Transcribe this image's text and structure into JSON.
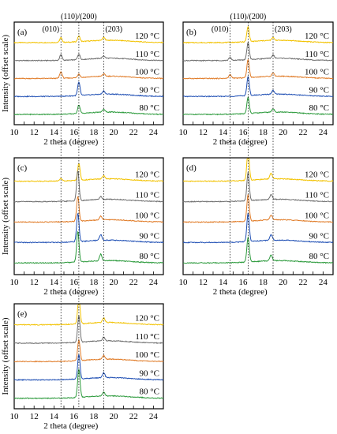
{
  "chart_data": [
    {
      "panel": "(a)",
      "type": "line",
      "xlabel": "2 theta (degree)",
      "ylabel": "Intensity (offset scale)",
      "xlim": [
        10,
        25
      ],
      "xticks": [
        10,
        11,
        12,
        13,
        14,
        15,
        16,
        17,
        18,
        19,
        20,
        21,
        22,
        23,
        24
      ],
      "peak_labels": [
        "(010)",
        "(110)/(200)",
        "(203)"
      ],
      "series": [
        {
          "name": "120 °C",
          "color": "#f2c200",
          "peaks": [
            {
              "x": 14.7,
              "h": 0.5
            },
            {
              "x": 16.5,
              "h": 0.6
            },
            {
              "x": 19.0,
              "h": 0.3
            }
          ]
        },
        {
          "name": "110 °C",
          "color": "#6e6e6e",
          "peaks": [
            {
              "x": 14.7,
              "h": 0.6
            },
            {
              "x": 16.5,
              "h": 0.6
            },
            {
              "x": 19.0,
              "h": 0.25
            }
          ]
        },
        {
          "name": "100 °C",
          "color": "#e07b27",
          "peaks": [
            {
              "x": 14.7,
              "h": 0.7
            },
            {
              "x": 16.5,
              "h": 0.4
            },
            {
              "x": 19.0,
              "h": 0.25
            }
          ]
        },
        {
          "name": "90 °C",
          "color": "#1f4fb4",
          "peaks": [
            {
              "x": 16.5,
              "h": 1.4
            },
            {
              "x": 19.0,
              "h": 0.35
            }
          ]
        },
        {
          "name": "80 °C",
          "color": "#2c9a3c",
          "peaks": [
            {
              "x": 16.5,
              "h": 0.9
            },
            {
              "x": 19.0,
              "h": 0.3
            }
          ]
        }
      ]
    },
    {
      "panel": "(b)",
      "type": "line",
      "xlabel": "2 theta (degree)",
      "ylabel": "",
      "xlim": [
        10,
        25
      ],
      "xticks": [
        10,
        11,
        12,
        13,
        14,
        15,
        16,
        17,
        18,
        19,
        20,
        21,
        22,
        23,
        24
      ],
      "peak_labels": [
        "(010)",
        "(110)/(200)",
        "(203)"
      ],
      "series": [
        {
          "name": "120 °C",
          "color": "#f2c200",
          "peaks": [
            {
              "x": 16.5,
              "h": 1.6
            },
            {
              "x": 19.0,
              "h": 0.3
            }
          ]
        },
        {
          "name": "110 °C",
          "color": "#6e6e6e",
          "peaks": [
            {
              "x": 14.7,
              "h": 0.3
            },
            {
              "x": 16.5,
              "h": 1.8
            },
            {
              "x": 19.0,
              "h": 0.35
            }
          ]
        },
        {
          "name": "100 °C",
          "color": "#e07b27",
          "peaks": [
            {
              "x": 14.7,
              "h": 0.4
            },
            {
              "x": 16.5,
              "h": 1.9
            },
            {
              "x": 19.0,
              "h": 0.35
            }
          ]
        },
        {
          "name": "90 °C",
          "color": "#1f4fb4",
          "peaks": [
            {
              "x": 16.5,
              "h": 2.0
            },
            {
              "x": 19.0,
              "h": 0.4
            }
          ]
        },
        {
          "name": "80 °C",
          "color": "#2c9a3c",
          "peaks": [
            {
              "x": 16.5,
              "h": 1.7
            },
            {
              "x": 19.0,
              "h": 0.35
            }
          ]
        }
      ]
    },
    {
      "panel": "(c)",
      "type": "line",
      "xlabel": "2 theta (degree)",
      "ylabel": "Intensity (offset scale)",
      "xlim": [
        10,
        25
      ],
      "xticks": [
        10,
        11,
        12,
        13,
        14,
        15,
        16,
        17,
        18,
        19,
        20,
        21,
        22,
        23,
        24
      ],
      "peak_labels": [],
      "series": [
        {
          "name": "120 °C",
          "color": "#f2c200",
          "peaks": [
            {
              "x": 14.7,
              "h": 0.3
            },
            {
              "x": 16.5,
              "h": 1.8
            },
            {
              "x": 19.0,
              "h": 0.35
            }
          ]
        },
        {
          "name": "110 °C",
          "color": "#6e6e6e",
          "peaks": [
            {
              "x": 16.4,
              "h": 3.2
            },
            {
              "x": 18.7,
              "h": 0.3
            }
          ]
        },
        {
          "name": "100 °C",
          "color": "#e07b27",
          "peaks": [
            {
              "x": 16.4,
              "h": 2.6
            },
            {
              "x": 18.7,
              "h": 0.4
            }
          ]
        },
        {
          "name": "90 °C",
          "color": "#1f4fb4",
          "peaks": [
            {
              "x": 16.4,
              "h": 3.0
            },
            {
              "x": 18.7,
              "h": 0.6
            }
          ]
        },
        {
          "name": "80 °C",
          "color": "#2c9a3c",
          "peaks": [
            {
              "x": 16.4,
              "h": 3.2
            },
            {
              "x": 18.7,
              "h": 0.7
            }
          ]
        }
      ]
    },
    {
      "panel": "(d)",
      "type": "line",
      "xlabel": "2 theta (degree)",
      "ylabel": "",
      "xlim": [
        10,
        25
      ],
      "xticks": [
        10,
        11,
        12,
        13,
        14,
        15,
        16,
        17,
        18,
        19,
        20,
        21,
        22,
        23,
        24
      ],
      "peak_labels": [],
      "series": [
        {
          "name": "120 °C",
          "color": "#f2c200",
          "peaks": [
            {
              "x": 16.5,
              "h": 3.2
            },
            {
              "x": 18.8,
              "h": 0.6
            }
          ]
        },
        {
          "name": "110 °C",
          "color": "#6e6e6e",
          "peaks": [
            {
              "x": 16.5,
              "h": 3.0
            },
            {
              "x": 18.8,
              "h": 0.5
            }
          ]
        },
        {
          "name": "100 °C",
          "color": "#e07b27",
          "peaks": [
            {
              "x": 16.5,
              "h": 2.8
            },
            {
              "x": 18.8,
              "h": 0.5
            }
          ]
        },
        {
          "name": "90 °C",
          "color": "#1f4fb4",
          "peaks": [
            {
              "x": 16.5,
              "h": 3.0
            },
            {
              "x": 18.8,
              "h": 0.6
            }
          ]
        },
        {
          "name": "80 °C",
          "color": "#2c9a3c",
          "peaks": [
            {
              "x": 16.5,
              "h": 2.6
            },
            {
              "x": 18.8,
              "h": 0.6
            }
          ]
        }
      ]
    },
    {
      "panel": "(e)",
      "type": "line",
      "xlabel": "2 theta (degree)",
      "ylabel": "Intensity (offset scale)",
      "xlim": [
        10,
        25
      ],
      "xticks": [
        10,
        11,
        12,
        13,
        14,
        15,
        16,
        17,
        18,
        19,
        20,
        21,
        22,
        23,
        24
      ],
      "peak_labels": [],
      "series": [
        {
          "name": "120 °C",
          "color": "#f2c200",
          "peaks": [
            {
              "x": 16.5,
              "h": 2.8
            },
            {
              "x": 19.0,
              "h": 0.5
            }
          ]
        },
        {
          "name": "110 °C",
          "color": "#6e6e6e",
          "peaks": [
            {
              "x": 16.5,
              "h": 2.8
            },
            {
              "x": 19.0,
              "h": 0.4
            }
          ]
        },
        {
          "name": "100 °C",
          "color": "#e07b27",
          "peaks": [
            {
              "x": 16.5,
              "h": 2.2
            },
            {
              "x": 19.0,
              "h": 0.4
            }
          ]
        },
        {
          "name": "90 °C",
          "color": "#1f4fb4",
          "peaks": [
            {
              "x": 16.5,
              "h": 2.6
            },
            {
              "x": 19.0,
              "h": 0.5
            }
          ]
        },
        {
          "name": "80 °C",
          "color": "#2c9a3c",
          "peaks": [
            {
              "x": 16.5,
              "h": 3.0
            },
            {
              "x": 19.0,
              "h": 0.4
            }
          ]
        }
      ]
    }
  ],
  "reference_lines_x": [
    14.7,
    16.5,
    19.0
  ]
}
